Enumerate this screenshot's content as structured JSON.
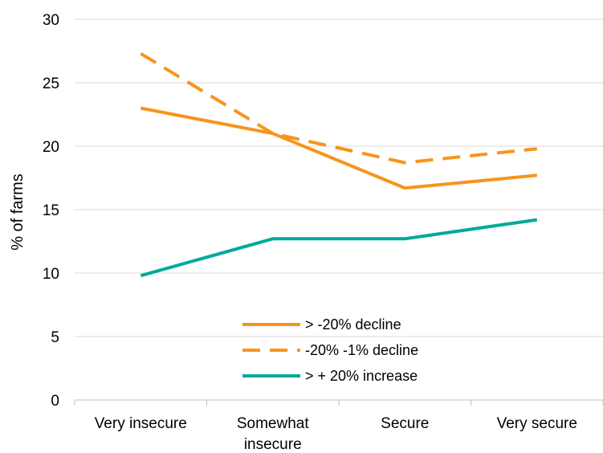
{
  "chart_data": {
    "type": "line",
    "title": "",
    "xlabel": "",
    "ylabel": "% of farms",
    "ylim": [
      0,
      30
    ],
    "yticks": [
      0,
      5,
      10,
      15,
      20,
      25,
      30
    ],
    "grid": true,
    "legend_position": "bottom-center",
    "categories": [
      [
        "Very insecure"
      ],
      [
        "Somewhat",
        "insecure"
      ],
      [
        "Secure"
      ],
      [
        "Very secure"
      ]
    ],
    "series": [
      {
        "name": "> -20% decline",
        "values": [
          23.0,
          21.0,
          16.7,
          17.7
        ],
        "color": "#F7941D",
        "dash": "solid"
      },
      {
        "name": "-20% -1% decline",
        "values": [
          27.3,
          21.0,
          18.7,
          19.8
        ],
        "color": "#F7941D",
        "dash": "dashed"
      },
      {
        "name": "> + 20% increase",
        "values": [
          9.8,
          12.7,
          12.7,
          14.2
        ],
        "color": "#00A99D",
        "dash": "solid"
      }
    ]
  }
}
